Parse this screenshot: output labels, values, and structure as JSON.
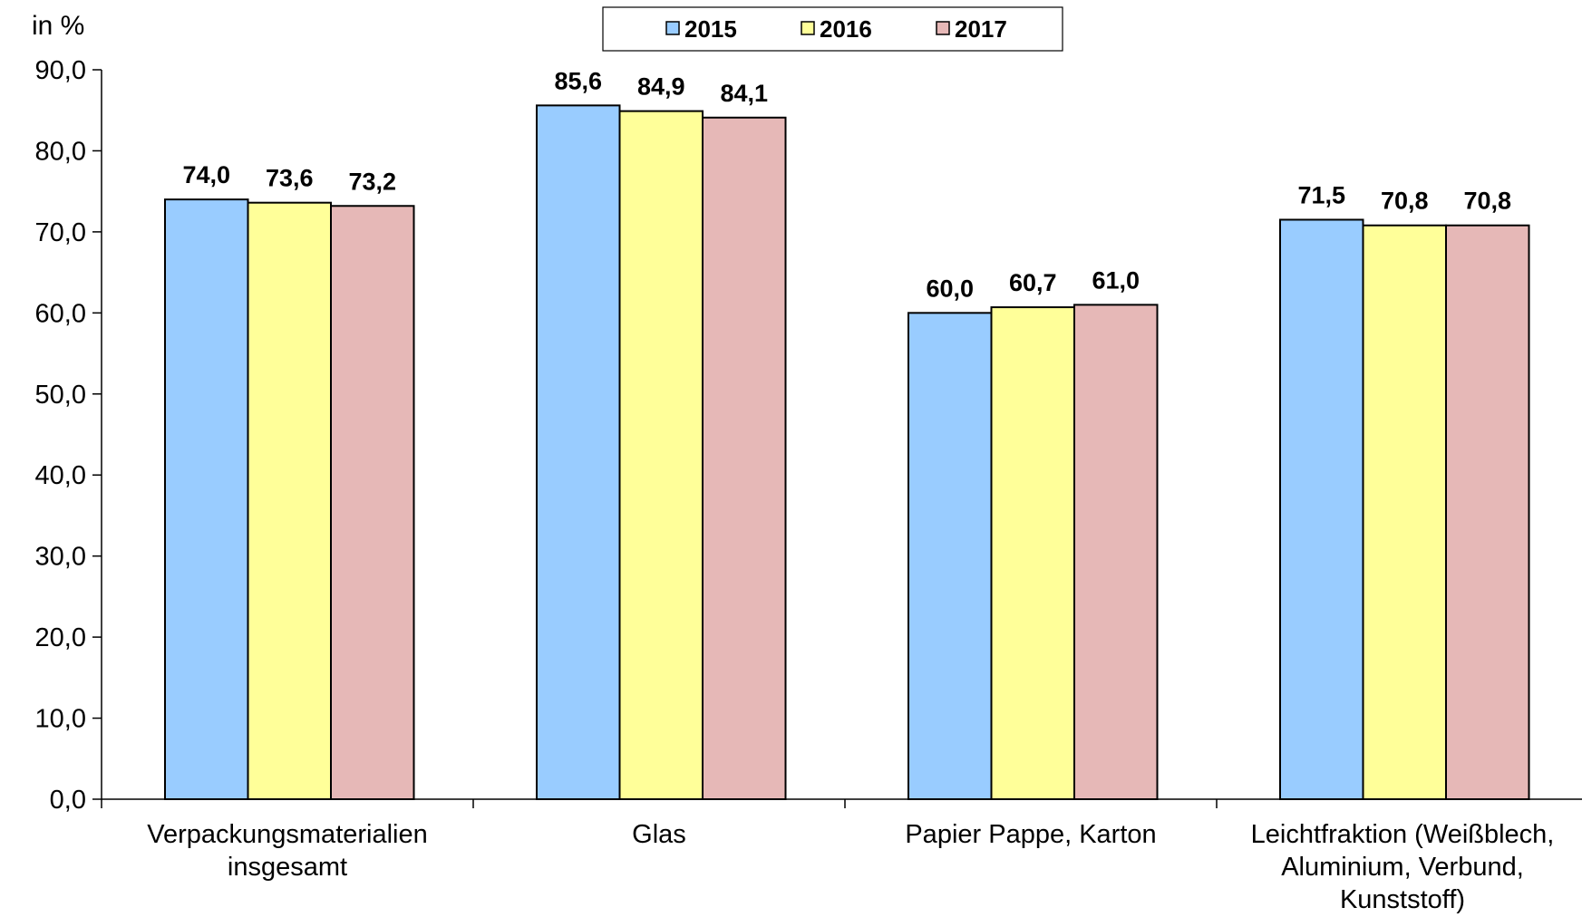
{
  "chart_data": {
    "type": "bar",
    "ylabel": "in %",
    "ylim": [
      0,
      90
    ],
    "yticks": [
      "0,0",
      "10,0",
      "20,0",
      "30,0",
      "40,0",
      "50,0",
      "60,0",
      "70,0",
      "80,0",
      "90,0"
    ],
    "categories": [
      [
        "Verpackungsmaterialien",
        "insgesamt"
      ],
      [
        "Glas"
      ],
      [
        "Papier Pappe, Karton"
      ],
      [
        "Leichtfraktion (Weißblech,",
        "Aluminium, Verbund,",
        "Kunststoff)"
      ]
    ],
    "series": [
      {
        "name": "2015",
        "color": "#99ccff",
        "values": [
          74.0,
          85.6,
          60.0,
          71.5
        ],
        "labels": [
          "74,0",
          "85,6",
          "60,0",
          "71,5"
        ]
      },
      {
        "name": "2016",
        "color": "#ffff99",
        "values": [
          73.6,
          84.9,
          60.7,
          70.8
        ],
        "labels": [
          "73,6",
          "84,9",
          "60,7",
          "70,8"
        ]
      },
      {
        "name": "2017",
        "color": "#e6b8b7",
        "values": [
          73.2,
          84.1,
          61.0,
          70.8
        ],
        "labels": [
          "73,2",
          "84,1",
          "61,0",
          "70,8"
        ]
      }
    ],
    "legend_position": "top-center",
    "grid": false
  }
}
